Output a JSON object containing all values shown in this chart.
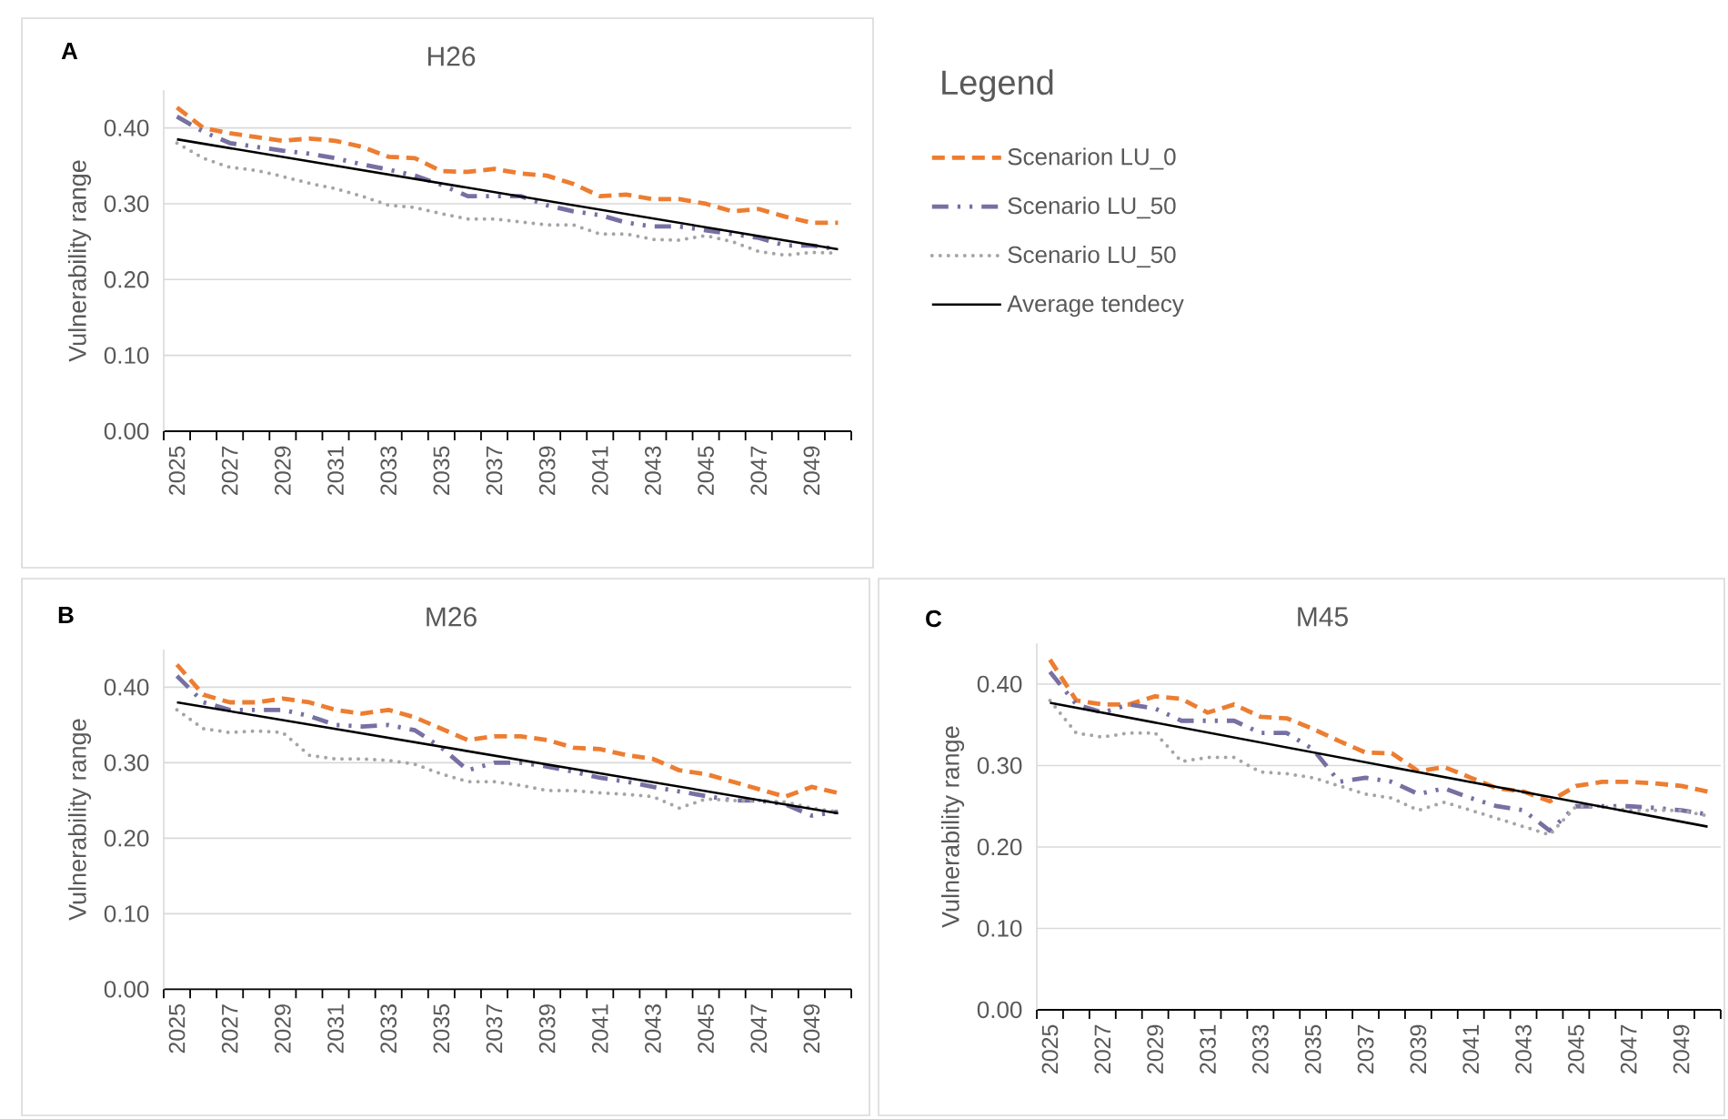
{
  "chart_data": [
    {
      "type": "line",
      "title": "H26",
      "ylabel": "Vulnerability range",
      "annotations": [
        "A"
      ],
      "legend_title": "Legend",
      "legend": "right",
      "grid": "y",
      "categories": [
        "2025",
        null,
        "2027",
        null,
        "2029",
        null,
        "2031",
        null,
        "2033",
        null,
        "2035",
        null,
        "2037",
        null,
        "2039",
        null,
        "2041",
        null,
        "2043",
        null,
        "2045",
        null,
        "2047",
        null,
        "2049",
        null
      ],
      "ylim": [
        0,
        0.45
      ],
      "yticks": [
        {
          "value": 0,
          "label": "0.00"
        },
        {
          "value": 0.1,
          "label": "0.10"
        },
        {
          "value": 0.2,
          "label": "0.20"
        },
        {
          "value": 0.3,
          "label": "0.30"
        },
        {
          "value": 0.4,
          "label": "0.40"
        }
      ],
      "series": [
        {
          "name": "Scenarion LU_0",
          "color": "#ed7d31",
          "line_style": "dashed",
          "values": [
            0.427,
            0.4,
            0.393,
            0.388,
            0.383,
            0.386,
            0.383,
            0.375,
            0.362,
            0.36,
            0.343,
            0.342,
            0.346,
            0.34,
            0.337,
            0.326,
            0.31,
            0.312,
            0.306,
            0.306,
            0.3,
            0.29,
            0.293,
            0.283,
            0.275,
            0.275
          ]
        },
        {
          "name": "Scenario LU_50",
          "color": "#7670a3",
          "line_style": "dashdot",
          "values": [
            0.415,
            0.395,
            0.38,
            0.375,
            0.37,
            0.366,
            0.36,
            0.352,
            0.345,
            0.337,
            0.325,
            0.31,
            0.31,
            0.31,
            0.298,
            0.29,
            0.285,
            0.275,
            0.27,
            0.27,
            0.265,
            0.26,
            0.255,
            0.245,
            0.245,
            0.24
          ]
        },
        {
          "name": "Scenario LU_50",
          "color": "#a5a5a5",
          "line_style": "dotted",
          "values": [
            0.38,
            0.36,
            0.348,
            0.344,
            0.336,
            0.327,
            0.32,
            0.31,
            0.298,
            0.295,
            0.287,
            0.28,
            0.28,
            0.276,
            0.272,
            0.272,
            0.26,
            0.26,
            0.253,
            0.252,
            0.258,
            0.25,
            0.237,
            0.232,
            0.236,
            0.235
          ]
        },
        {
          "name": "Average tendecy",
          "color": "#000000",
          "line_style": "solid",
          "values": [
            0.385,
            null,
            null,
            null,
            null,
            null,
            null,
            null,
            null,
            null,
            null,
            null,
            null,
            null,
            null,
            null,
            null,
            null,
            null,
            null,
            null,
            null,
            null,
            null,
            null,
            0.24
          ]
        }
      ]
    },
    {
      "type": "line",
      "title": "M26",
      "ylabel": "Vulnerability range",
      "annotations": [
        "B"
      ],
      "grid": "y",
      "categories": [
        "2025",
        null,
        "2027",
        null,
        "2029",
        null,
        "2031",
        null,
        "2033",
        null,
        "2035",
        null,
        "2037",
        null,
        "2039",
        null,
        "2041",
        null,
        "2043",
        null,
        "2045",
        null,
        "2047",
        null,
        "2049",
        null
      ],
      "ylim": [
        0,
        0.45
      ],
      "yticks": [
        {
          "value": 0,
          "label": "0.00"
        },
        {
          "value": 0.1,
          "label": "0.10"
        },
        {
          "value": 0.2,
          "label": "0.20"
        },
        {
          "value": 0.3,
          "label": "0.30"
        },
        {
          "value": 0.4,
          "label": "0.40"
        }
      ],
      "series": [
        {
          "color": "#ed7d31",
          "line_style": "dashed",
          "values": [
            0.43,
            0.39,
            0.38,
            0.38,
            0.385,
            0.38,
            0.37,
            0.365,
            0.37,
            0.36,
            0.345,
            0.33,
            0.335,
            0.335,
            0.33,
            0.32,
            0.318,
            0.31,
            0.305,
            0.29,
            0.285,
            0.275,
            0.265,
            0.255,
            0.268,
            0.26
          ]
        },
        {
          "color": "#7670a3",
          "line_style": "dashdot",
          "values": [
            0.415,
            0.38,
            0.37,
            0.37,
            0.37,
            0.362,
            0.35,
            0.348,
            0.35,
            0.343,
            0.32,
            0.29,
            0.3,
            0.3,
            0.295,
            0.288,
            0.28,
            0.275,
            0.268,
            0.262,
            0.256,
            0.25,
            0.25,
            0.245,
            0.23,
            0.235
          ]
        },
        {
          "color": "#a5a5a5",
          "line_style": "dotted",
          "values": [
            0.37,
            0.345,
            0.34,
            0.342,
            0.34,
            0.31,
            0.305,
            0.305,
            0.303,
            0.298,
            0.285,
            0.275,
            0.275,
            0.27,
            0.263,
            0.263,
            0.26,
            0.258,
            0.255,
            0.24,
            0.252,
            0.25,
            0.25,
            0.248,
            0.24,
            0.235
          ]
        },
        {
          "color": "#000000",
          "line_style": "solid",
          "values": [
            0.38,
            null,
            null,
            null,
            null,
            null,
            null,
            null,
            null,
            null,
            null,
            null,
            null,
            null,
            null,
            null,
            null,
            null,
            null,
            null,
            null,
            null,
            null,
            null,
            null,
            0.233
          ]
        }
      ]
    },
    {
      "type": "line",
      "title": "M45",
      "ylabel": "Vulnerability range",
      "annotations": [
        "C"
      ],
      "grid": "y",
      "categories": [
        "2025",
        null,
        "2027",
        null,
        "2029",
        null,
        "2031",
        null,
        "2033",
        null,
        "2035",
        null,
        "2037",
        null,
        "2039",
        null,
        "2041",
        null,
        "2043",
        null,
        "2045",
        null,
        "2047",
        null,
        "2049",
        null
      ],
      "ylim": [
        0,
        0.45
      ],
      "yticks": [
        {
          "value": 0,
          "label": "0.00"
        },
        {
          "value": 0.1,
          "label": "0.10"
        },
        {
          "value": 0.2,
          "label": "0.20"
        },
        {
          "value": 0.3,
          "label": "0.30"
        },
        {
          "value": 0.4,
          "label": "0.40"
        }
      ],
      "series": [
        {
          "color": "#ed7d31",
          "line_style": "dashed",
          "values": [
            0.43,
            0.38,
            0.375,
            0.375,
            0.385,
            0.382,
            0.365,
            0.375,
            0.36,
            0.358,
            0.345,
            0.33,
            0.316,
            0.315,
            0.293,
            0.298,
            0.285,
            0.272,
            0.268,
            0.256,
            0.275,
            0.28,
            0.28,
            0.278,
            0.275,
            0.268
          ]
        },
        {
          "color": "#7670a3",
          "line_style": "dashdot",
          "values": [
            0.415,
            0.375,
            0.365,
            0.375,
            0.37,
            0.355,
            0.355,
            0.355,
            0.34,
            0.34,
            0.32,
            0.28,
            0.285,
            0.28,
            0.265,
            0.272,
            0.26,
            0.25,
            0.245,
            0.22,
            0.25,
            0.25,
            0.25,
            0.248,
            0.245,
            0.24
          ]
        },
        {
          "color": "#a5a5a5",
          "line_style": "dotted",
          "values": [
            0.38,
            0.34,
            0.335,
            0.34,
            0.34,
            0.305,
            0.31,
            0.31,
            0.292,
            0.29,
            0.285,
            0.275,
            0.265,
            0.26,
            0.245,
            0.255,
            0.245,
            0.235,
            0.225,
            0.215,
            0.25,
            0.25,
            0.245,
            0.245,
            0.245,
            0.238
          ]
        },
        {
          "color": "#000000",
          "line_style": "solid",
          "values": [
            0.377,
            null,
            null,
            null,
            null,
            null,
            null,
            null,
            null,
            null,
            null,
            null,
            null,
            null,
            null,
            null,
            null,
            null,
            null,
            null,
            null,
            null,
            null,
            null,
            null,
            0.225
          ]
        }
      ]
    }
  ]
}
